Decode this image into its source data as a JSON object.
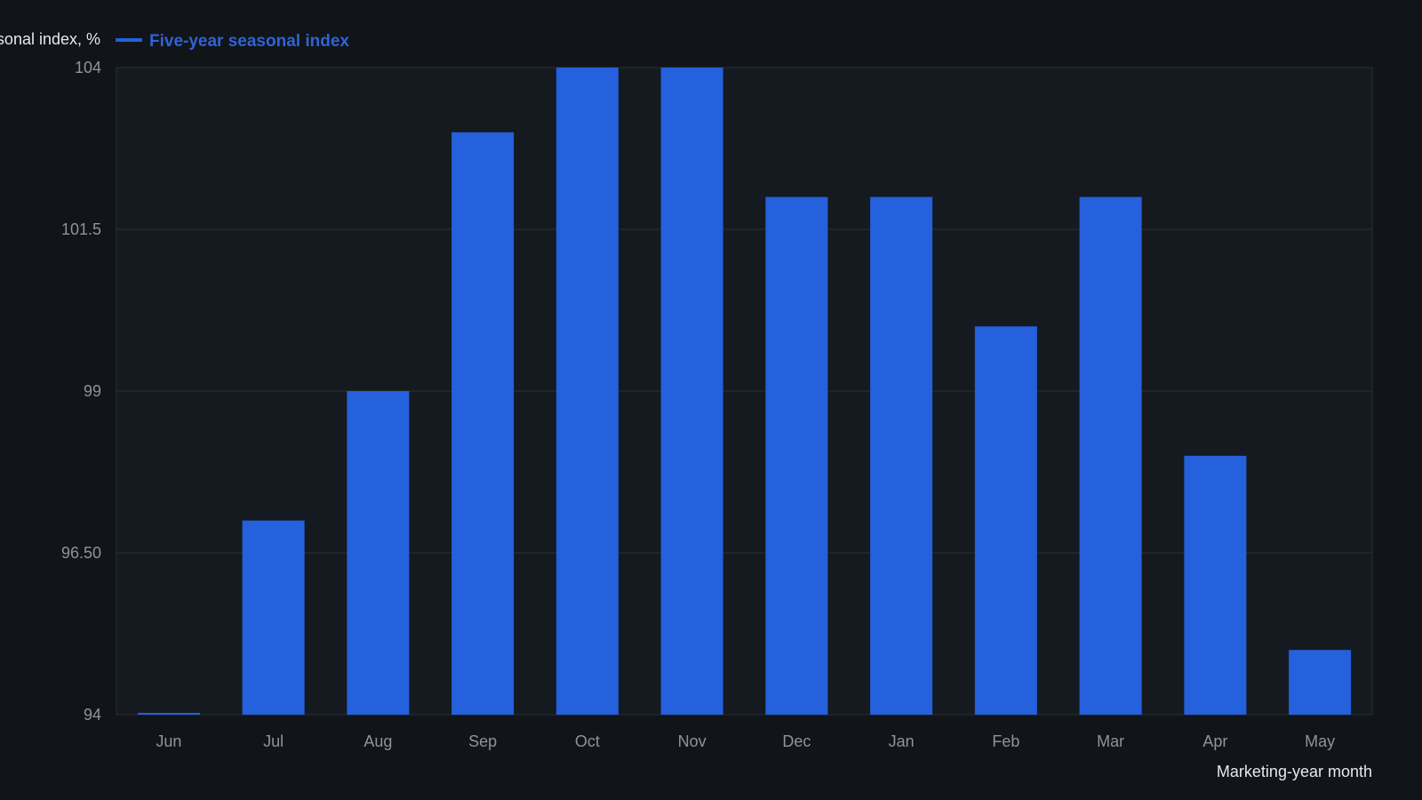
{
  "colors": {
    "background": "#111418",
    "plot_background": "#151a20",
    "grid": "#2a2f36",
    "bar": "#2560dd",
    "legend_text": "#2f63d6",
    "tick_text": "#8f949a",
    "axis_title_text": "#e6e8eb"
  },
  "chart_data": {
    "type": "bar",
    "categories": [
      "Jun",
      "Jul",
      "Aug",
      "Sep",
      "Oct",
      "Nov",
      "Dec",
      "Jan",
      "Feb",
      "Mar",
      "Apr",
      "May"
    ],
    "series": [
      {
        "name": "Five-year seasonal index",
        "values": [
          94,
          97,
          99,
          103,
          104,
          104,
          102,
          102,
          100,
          102,
          98,
          95
        ]
      }
    ],
    "ylabel": "Five-year seasonal index, %",
    "xlabel": "Marketing-year month",
    "ylim": [
      94,
      104
    ],
    "yticks": [
      94,
      96.5,
      99,
      101.5,
      104
    ],
    "ytick_labels": [
      "94",
      "96.50",
      "99",
      "101.5",
      "104"
    ],
    "grid": true,
    "legend_position": "top-left"
  }
}
